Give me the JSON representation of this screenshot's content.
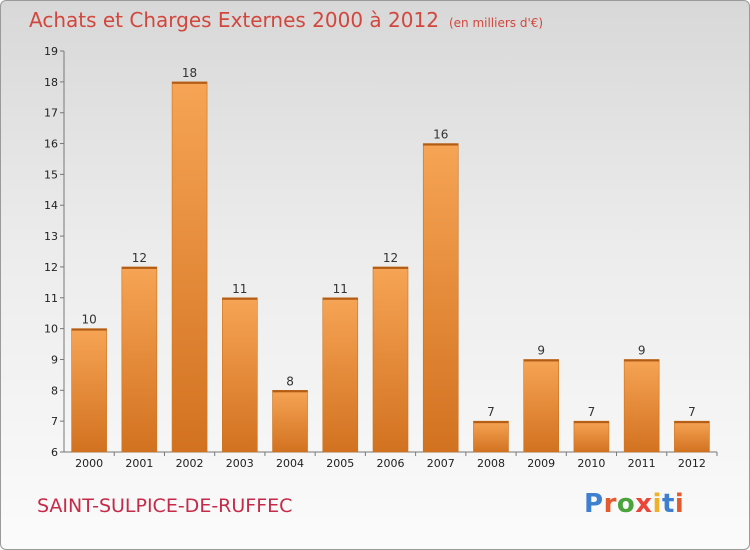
{
  "header": {
    "title": "Achats et Charges Externes 2000 à 2012",
    "unit": "(en milliers d'€)"
  },
  "footer": {
    "town": "SAINT-SULPICE-DE-RUFFEC",
    "logo": "Proxiti"
  },
  "colors": {
    "title": "#d2473d",
    "town": "#c62a49",
    "bar_light": "#f6a455",
    "bar_dark": "#d27220",
    "logo_letters": [
      "#3f7fd0",
      "#e35a2f",
      "#4aa33c",
      "#e9463a",
      "#f0b02a",
      "#3f7fd0",
      "#e35a2f"
    ]
  },
  "chart_data": {
    "type": "bar",
    "categories": [
      "2000",
      "2001",
      "2002",
      "2003",
      "2004",
      "2005",
      "2006",
      "2007",
      "2008",
      "2009",
      "2010",
      "2011",
      "2012"
    ],
    "values": [
      10,
      12,
      18,
      11,
      8,
      11,
      12,
      16,
      7,
      9,
      7,
      9,
      7
    ],
    "ylim": [
      6,
      19
    ],
    "yticks": [
      6,
      7,
      8,
      9,
      10,
      11,
      12,
      13,
      14,
      15,
      16,
      17,
      18,
      19
    ],
    "grid": false,
    "xlabel": "",
    "ylabel": ""
  }
}
